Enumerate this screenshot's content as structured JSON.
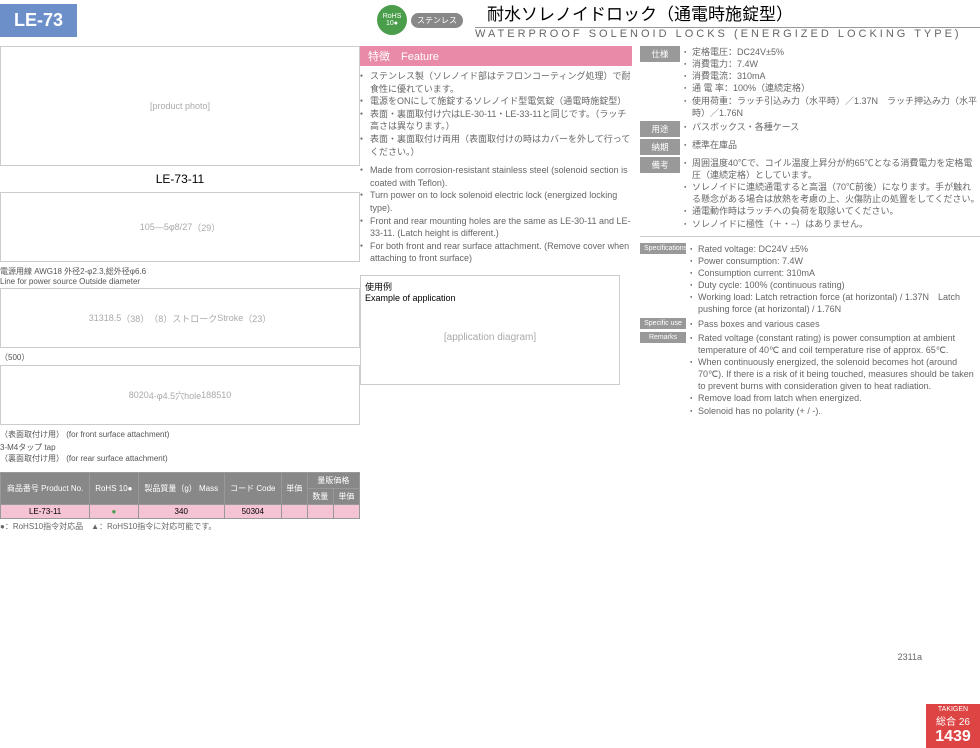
{
  "header": {
    "product_code": "LE-73",
    "rohs_label": "RoHS",
    "rohs_num": "10●",
    "stainless": "ステンレス",
    "title_jp": "耐水ソレノイドロック（通電時施錠型）",
    "title_en": "WATERPROOF SOLENOID LOCKS (ENERGIZED LOCKING TYPE)"
  },
  "feature_bar": "特徴　Feature",
  "features_jp": [
    "ステンレス製（ソレノイド部はテフロンコーティング処理）で耐食性に優れています。",
    "電源をONにして施錠するソレノイド型電気錠（通電時施錠型）",
    "表面・裏面取付け穴はLE-30-11・LE-33-11と同じです。（ラッチ高さは異なります。）",
    "表面・裏面取付け両用（表面取付けの時はカバーを外して行ってください。）"
  ],
  "features_en": [
    "Made from corrosion-resistant stainless steel (solenoid section is coated with Teflon).",
    "Turn power on to lock solenoid electric lock (energized locking type).",
    "Front and rear mounting holes are the same as LE-30-11 and LE-33-11. (Latch height is different.)",
    "For both front and rear surface attachment. (Remove cover when attaching to front surface)"
  ],
  "product_name": "LE-73-11",
  "dim_labels": {
    "d105": "105",
    "d5": "5",
    "phi8": "φ8",
    "d27": "27",
    "d29": "（29）",
    "power_line": "電源用線 AWG18 外径2-φ2.3,総外径φ6.6",
    "power_line_en": "Line for power source Outside diameter",
    "d31": "31",
    "d3": "3",
    "d185": "18.5",
    "d38": "（38）",
    "stroke": "（8）ストローク",
    "stroke_en": "Stroke",
    "d23": "（23）",
    "d500": "（500）",
    "d80": "80",
    "d20": "20",
    "hole": "4-φ4.5穴hole",
    "hole_sub": "（表面取付け用）",
    "hole_sub_en": "(for front surface attachment)",
    "d18": "18",
    "d85": "85",
    "d10": "10",
    "tap": "3-M4タップ tap",
    "tap_sub": "（裏面取付け用）",
    "tap_sub_en": "(for rear surface attachment)"
  },
  "app_title_jp": "使用例",
  "app_title_en": "Example of application",
  "specs_jp": {
    "仕様": [
      "定格電圧：DC24V±5%",
      "消費電力：7.4W",
      "消費電流：310mA",
      "通 電 率：100%（連続定格）",
      "使用荷重：ラッチ引込み力（水平時）／1.37N　ラッチ押込み力（水平時）／1.76N"
    ],
    "用途": [
      "パスボックス・各種ケース"
    ],
    "納期": [
      "標準在庫品"
    ],
    "備考": [
      "周囲温度40℃で、コイル温度上昇分が約65℃となる消費電力を定格電圧（連続定格）としています。",
      "ソレノイドに連続通電すると高温（70℃前後）になります。手が触れる懸念がある場合は放熱を考慮の上、火傷防止の処置をしてください。",
      "通電動作時はラッチへの負荷を取除いてください。",
      "ソレノイドに極性（＋・−）はありません。"
    ]
  },
  "specs_en": {
    "Specifications": [
      "Rated voltage: DC24V ±5%",
      "Power consumption: 7.4W",
      "Consumption current: 310mA",
      "Duty cycle: 100% (continuous rating)",
      "Working load: Latch retraction force (at horizontal) / 1.37N　Latch pushing force (at horizontal) / 1.76N"
    ],
    "Specific use": [
      "Pass boxes and various cases"
    ],
    "Remarks": [
      "Rated voltage (constant rating) is power consumption at ambient temperature of 40℃ and coil temperature rise of approx. 65℃.",
      "When continuously energized, the solenoid becomes hot (around 70℃). If there is a risk of it being touched, measures should be taken to prevent burns with consideration given to heat radiation.",
      "Remove load from latch when energized.",
      "Solenoid has no polarity (+ / -)."
    ]
  },
  "table": {
    "headers": [
      "商品番号\nProduct No.",
      "RoHS\n10●",
      "製品質量（g）\nMass",
      "コード\nCode",
      "単価",
      "量販価格"
    ],
    "sub_headers": [
      "数量",
      "単価"
    ],
    "row": [
      "LE-73-11",
      "●",
      "340",
      "50304",
      "",
      "",
      ""
    ]
  },
  "footer_note": "●：RoHS10指令対応品　▲：RoHS10指令に対応可能です。",
  "page_ref": "2311a",
  "corner": {
    "brand": "TAKIGEN",
    "sub": "総合 26",
    "page": "1439"
  }
}
